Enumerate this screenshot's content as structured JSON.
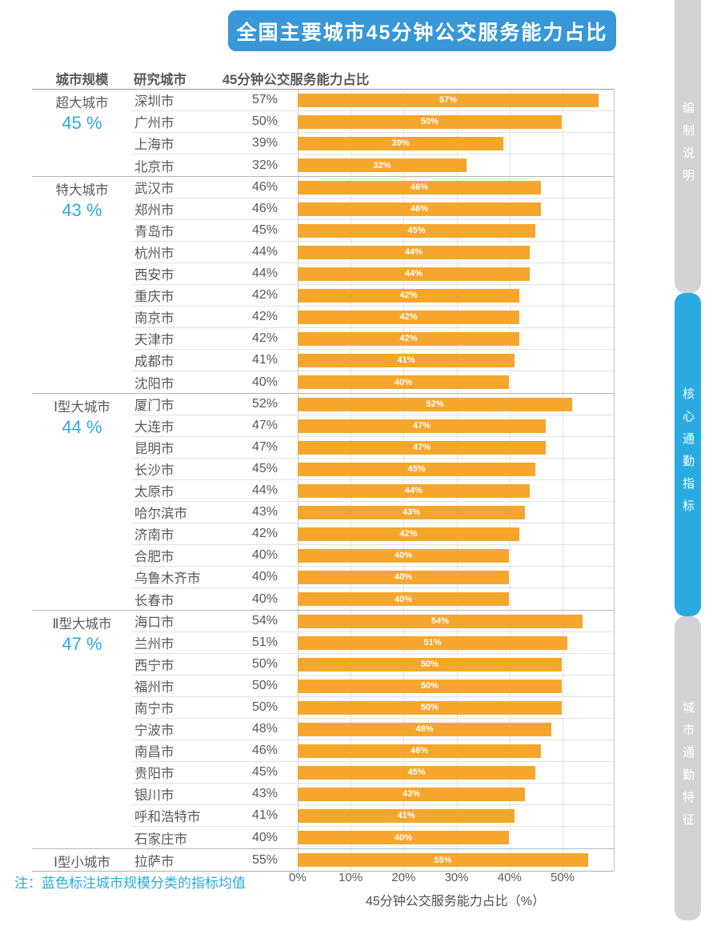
{
  "title": "全国主要城市45分钟公交服务能力占比",
  "table_headers": {
    "scale": "城市规模",
    "city": "研究城市",
    "metric": "45分钟公交服务能力占比"
  },
  "note": "注：蓝色标注城市规模分类的指标均值",
  "sidebar": {
    "tabs": [
      {
        "label": "编制说明",
        "active": false
      },
      {
        "label": "核心通勤指标",
        "active": true
      },
      {
        "label": "城市通勤特征",
        "active": false
      }
    ]
  },
  "colors": {
    "bar_orange": "#f5a62d",
    "title_banner_blue": "#3897d6",
    "accent_blue": "#29abe2",
    "inactive_tab_gray": "#d3d3d5",
    "text_dark_gray": "#58595b"
  },
  "chart_data": {
    "type": "bar",
    "orientation": "horizontal",
    "title": "全国主要城市45分钟公交服务能力占比",
    "xlabel": "45分钟公交服务能力占比（%）",
    "xticks": [
      "0%",
      "10%",
      "20%",
      "30%",
      "40%",
      "50%"
    ],
    "xlim": [
      0,
      60
    ],
    "grid": true,
    "bar_value_labels": "inside-center",
    "groups": [
      {
        "scale": "超大城市",
        "mean": "45 %",
        "cities": [
          {
            "name": "深圳市",
            "value": 57
          },
          {
            "name": "广州市",
            "value": 50
          },
          {
            "name": "上海市",
            "value": 39
          },
          {
            "name": "北京市",
            "value": 32
          }
        ]
      },
      {
        "scale": "特大城市",
        "mean": "43 %",
        "cities": [
          {
            "name": "武汉市",
            "value": 46
          },
          {
            "name": "郑州市",
            "value": 46
          },
          {
            "name": "青岛市",
            "value": 45
          },
          {
            "name": "杭州市",
            "value": 44
          },
          {
            "name": "西安市",
            "value": 44
          },
          {
            "name": "重庆市",
            "value": 42
          },
          {
            "name": "南京市",
            "value": 42
          },
          {
            "name": "天津市",
            "value": 42
          },
          {
            "name": "成都市",
            "value": 41
          },
          {
            "name": "沈阳市",
            "value": 40
          }
        ]
      },
      {
        "scale": "Ⅰ型大城市",
        "mean": "44 %",
        "cities": [
          {
            "name": "厦门市",
            "value": 52
          },
          {
            "name": "大连市",
            "value": 47
          },
          {
            "name": "昆明市",
            "value": 47
          },
          {
            "name": "长沙市",
            "value": 45
          },
          {
            "name": "太原市",
            "value": 44
          },
          {
            "name": "哈尔滨市",
            "value": 43
          },
          {
            "name": "济南市",
            "value": 42
          },
          {
            "name": "合肥市",
            "value": 40
          },
          {
            "name": "乌鲁木齐市",
            "value": 40
          },
          {
            "name": "长春市",
            "value": 40
          }
        ]
      },
      {
        "scale": "Ⅱ型大城市",
        "mean": "47 %",
        "cities": [
          {
            "name": "海口市",
            "value": 54
          },
          {
            "name": "兰州市",
            "value": 51
          },
          {
            "name": "西宁市",
            "value": 50
          },
          {
            "name": "福州市",
            "value": 50
          },
          {
            "name": "南宁市",
            "value": 50
          },
          {
            "name": "宁波市",
            "value": 48
          },
          {
            "name": "南昌市",
            "value": 46
          },
          {
            "name": "贵阳市",
            "value": 45
          },
          {
            "name": "银川市",
            "value": 43
          },
          {
            "name": "呼和浩特市",
            "value": 41
          },
          {
            "name": "石家庄市",
            "value": 40
          }
        ]
      },
      {
        "scale": "Ⅰ型小城市",
        "mean": "",
        "cities": [
          {
            "name": "拉萨市",
            "value": 55
          }
        ]
      }
    ]
  }
}
